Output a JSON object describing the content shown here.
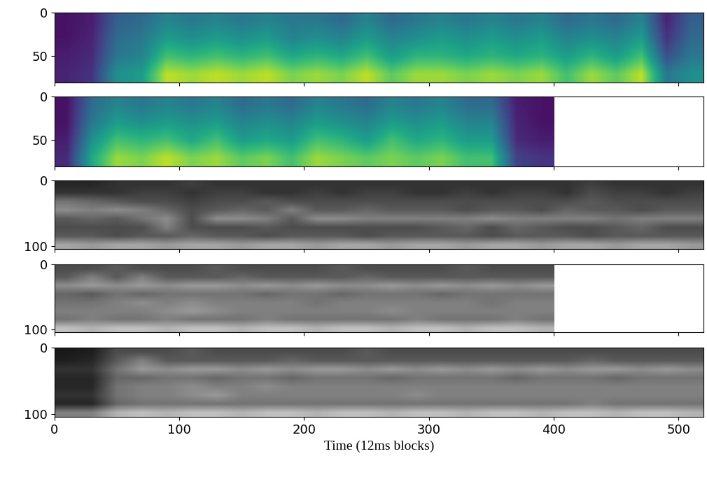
{
  "chart_data": [
    {
      "type": "heatmap",
      "color": "viridis",
      "clim": [
        0,
        1
      ],
      "xlim": [
        0,
        520
      ],
      "xticks": [
        0,
        100,
        200,
        300,
        400,
        500
      ],
      "ylim": [
        80,
        0
      ],
      "yticks": [
        0,
        50
      ],
      "tick_labels": "y",
      "x": [
        10,
        30,
        50,
        70,
        90,
        110,
        130,
        150,
        170,
        190,
        210,
        230,
        250,
        270,
        290,
        310,
        330,
        350,
        370,
        390,
        410,
        430,
        450,
        470,
        490,
        510
      ],
      "y": [
        10,
        30,
        50,
        70
      ],
      "cells": [
        [
          0.05,
          0.08,
          0.3,
          0.35,
          0.45,
          0.4,
          0.45,
          0.4,
          0.45,
          0.4,
          0.4,
          0.35,
          0.45,
          0.35,
          0.4,
          0.45,
          0.4,
          0.45,
          0.4,
          0.45,
          0.35,
          0.4,
          0.35,
          0.45,
          0.1,
          0.3
        ],
        [
          0.05,
          0.1,
          0.35,
          0.4,
          0.55,
          0.5,
          0.55,
          0.5,
          0.55,
          0.45,
          0.5,
          0.45,
          0.55,
          0.45,
          0.5,
          0.55,
          0.5,
          0.55,
          0.5,
          0.55,
          0.45,
          0.5,
          0.45,
          0.55,
          0.15,
          0.35
        ],
        [
          0.08,
          0.12,
          0.4,
          0.45,
          0.7,
          0.65,
          0.7,
          0.65,
          0.7,
          0.6,
          0.65,
          0.6,
          0.7,
          0.55,
          0.65,
          0.65,
          0.6,
          0.65,
          0.6,
          0.65,
          0.55,
          0.65,
          0.55,
          0.7,
          0.25,
          0.4
        ],
        [
          0.1,
          0.15,
          0.5,
          0.55,
          0.9,
          0.85,
          0.9,
          0.85,
          0.9,
          0.8,
          0.85,
          0.8,
          0.9,
          0.75,
          0.85,
          0.85,
          0.8,
          0.85,
          0.8,
          0.85,
          0.7,
          0.85,
          0.75,
          0.9,
          0.4,
          0.5
        ]
      ]
    },
    {
      "type": "heatmap",
      "color": "viridis",
      "clim": [
        0,
        1
      ],
      "xlim": [
        0,
        520
      ],
      "xticks": [
        0,
        100,
        200,
        300,
        400,
        500
      ],
      "ylim": [
        80,
        0
      ],
      "yticks": [
        0,
        50
      ],
      "tick_labels": "y",
      "x": [
        10,
        30,
        50,
        70,
        90,
        110,
        130,
        150,
        170,
        190,
        210,
        230,
        250,
        270,
        290,
        310,
        330,
        350,
        370,
        390
      ],
      "y": [
        10,
        30,
        50,
        70
      ],
      "cells": [
        [
          0.05,
          0.35,
          0.45,
          0.4,
          0.45,
          0.4,
          0.45,
          0.35,
          0.4,
          0.35,
          0.45,
          0.4,
          0.35,
          0.45,
          0.4,
          0.45,
          0.35,
          0.35,
          0.08,
          0.05
        ],
        [
          0.05,
          0.4,
          0.55,
          0.5,
          0.55,
          0.5,
          0.55,
          0.45,
          0.5,
          0.45,
          0.55,
          0.5,
          0.45,
          0.55,
          0.5,
          0.55,
          0.45,
          0.45,
          0.1,
          0.05
        ],
        [
          0.08,
          0.5,
          0.7,
          0.65,
          0.7,
          0.6,
          0.7,
          0.55,
          0.6,
          0.55,
          0.7,
          0.65,
          0.55,
          0.7,
          0.6,
          0.65,
          0.55,
          0.55,
          0.12,
          0.08
        ],
        [
          0.12,
          0.6,
          0.85,
          0.8,
          0.9,
          0.8,
          0.85,
          0.75,
          0.8,
          0.7,
          0.85,
          0.8,
          0.75,
          0.8,
          0.75,
          0.8,
          0.7,
          0.7,
          0.2,
          0.15
        ]
      ]
    },
    {
      "type": "heatmap",
      "color": "gray",
      "clim": [
        0,
        1
      ],
      "xlim": [
        0,
        520
      ],
      "xticks": [
        0,
        100,
        200,
        300,
        400,
        500
      ],
      "ylim": [
        104,
        0
      ],
      "yticks": [
        0,
        100
      ],
      "tick_labels": "y",
      "x": [
        10,
        30,
        50,
        70,
        90,
        110,
        130,
        150,
        170,
        190,
        210,
        230,
        250,
        270,
        290,
        310,
        330,
        350,
        370,
        390,
        410,
        430,
        450,
        470,
        490,
        510
      ],
      "y": [
        6.5,
        19.5,
        32.5,
        45.5,
        58.5,
        71.5,
        84.5,
        97.5
      ],
      "cells": [
        [
          0.15,
          0.15,
          0.2,
          0.2,
          0.2,
          0.25,
          0.2,
          0.2,
          0.2,
          0.2,
          0.2,
          0.2,
          0.2,
          0.2,
          0.2,
          0.2,
          0.2,
          0.2,
          0.2,
          0.2,
          0.2,
          0.25,
          0.2,
          0.2,
          0.2,
          0.2
        ],
        [
          0.2,
          0.2,
          0.2,
          0.25,
          0.25,
          0.2,
          0.25,
          0.25,
          0.2,
          0.2,
          0.25,
          0.2,
          0.25,
          0.25,
          0.2,
          0.2,
          0.25,
          0.2,
          0.25,
          0.25,
          0.2,
          0.3,
          0.25,
          0.25,
          0.2,
          0.25
        ],
        [
          0.45,
          0.4,
          0.35,
          0.3,
          0.3,
          0.25,
          0.3,
          0.3,
          0.35,
          0.3,
          0.3,
          0.3,
          0.3,
          0.3,
          0.3,
          0.3,
          0.3,
          0.3,
          0.3,
          0.3,
          0.3,
          0.35,
          0.3,
          0.3,
          0.3,
          0.3
        ],
        [
          0.55,
          0.5,
          0.55,
          0.5,
          0.4,
          0.3,
          0.35,
          0.4,
          0.35,
          0.5,
          0.35,
          0.35,
          0.4,
          0.35,
          0.35,
          0.35,
          0.3,
          0.35,
          0.35,
          0.3,
          0.4,
          0.35,
          0.35,
          0.3,
          0.35,
          0.35
        ],
        [
          0.35,
          0.4,
          0.35,
          0.45,
          0.55,
          0.3,
          0.55,
          0.55,
          0.5,
          0.35,
          0.55,
          0.55,
          0.5,
          0.5,
          0.5,
          0.5,
          0.5,
          0.55,
          0.5,
          0.5,
          0.5,
          0.5,
          0.45,
          0.5,
          0.5,
          0.5
        ],
        [
          0.3,
          0.3,
          0.3,
          0.3,
          0.5,
          0.3,
          0.3,
          0.3,
          0.35,
          0.3,
          0.3,
          0.3,
          0.3,
          0.3,
          0.3,
          0.35,
          0.4,
          0.3,
          0.4,
          0.35,
          0.3,
          0.3,
          0.35,
          0.4,
          0.3,
          0.3
        ],
        [
          0.35,
          0.35,
          0.3,
          0.35,
          0.35,
          0.4,
          0.35,
          0.35,
          0.3,
          0.35,
          0.35,
          0.35,
          0.3,
          0.35,
          0.35,
          0.35,
          0.35,
          0.3,
          0.35,
          0.35,
          0.35,
          0.3,
          0.35,
          0.35,
          0.35,
          0.35
        ],
        [
          0.65,
          0.6,
          0.65,
          0.65,
          0.6,
          0.65,
          0.65,
          0.6,
          0.65,
          0.65,
          0.6,
          0.65,
          0.65,
          0.6,
          0.65,
          0.65,
          0.6,
          0.65,
          0.65,
          0.6,
          0.65,
          0.65,
          0.6,
          0.65,
          0.65,
          0.6
        ]
      ]
    },
    {
      "type": "heatmap",
      "color": "gray",
      "clim": [
        0,
        1
      ],
      "xlim": [
        0,
        520
      ],
      "xticks": [
        0,
        100,
        200,
        300,
        400,
        500
      ],
      "ylim": [
        104,
        0
      ],
      "yticks": [
        0,
        100
      ],
      "tick_labels": "y",
      "x": [
        10,
        30,
        50,
        70,
        90,
        110,
        130,
        150,
        170,
        190,
        210,
        230,
        250,
        270,
        290,
        310,
        330,
        350,
        370,
        390
      ],
      "y": [
        6.5,
        19.5,
        32.5,
        45.5,
        58.5,
        71.5,
        84.5,
        97.5
      ],
      "cells": [
        [
          0.3,
          0.3,
          0.35,
          0.3,
          0.3,
          0.3,
          0.35,
          0.3,
          0.3,
          0.3,
          0.3,
          0.35,
          0.3,
          0.3,
          0.3,
          0.3,
          0.35,
          0.3,
          0.3,
          0.3
        ],
        [
          0.35,
          0.5,
          0.35,
          0.5,
          0.35,
          0.35,
          0.35,
          0.4,
          0.35,
          0.35,
          0.35,
          0.35,
          0.4,
          0.35,
          0.35,
          0.35,
          0.35,
          0.35,
          0.35,
          0.35
        ],
        [
          0.55,
          0.6,
          0.55,
          0.6,
          0.55,
          0.6,
          0.6,
          0.55,
          0.6,
          0.55,
          0.6,
          0.55,
          0.55,
          0.6,
          0.55,
          0.6,
          0.55,
          0.6,
          0.55,
          0.6
        ],
        [
          0.4,
          0.35,
          0.45,
          0.4,
          0.45,
          0.45,
          0.45,
          0.45,
          0.4,
          0.45,
          0.45,
          0.4,
          0.45,
          0.45,
          0.45,
          0.4,
          0.45,
          0.45,
          0.45,
          0.45
        ],
        [
          0.45,
          0.45,
          0.5,
          0.55,
          0.5,
          0.55,
          0.5,
          0.5,
          0.5,
          0.5,
          0.45,
          0.5,
          0.5,
          0.5,
          0.5,
          0.5,
          0.5,
          0.45,
          0.5,
          0.5
        ],
        [
          0.5,
          0.5,
          0.5,
          0.5,
          0.55,
          0.6,
          0.55,
          0.5,
          0.5,
          0.5,
          0.5,
          0.5,
          0.5,
          0.55,
          0.5,
          0.5,
          0.5,
          0.5,
          0.5,
          0.5
        ],
        [
          0.45,
          0.5,
          0.45,
          0.45,
          0.5,
          0.45,
          0.45,
          0.45,
          0.5,
          0.45,
          0.45,
          0.45,
          0.45,
          0.45,
          0.5,
          0.45,
          0.45,
          0.45,
          0.5,
          0.45
        ],
        [
          0.75,
          0.7,
          0.75,
          0.75,
          0.7,
          0.75,
          0.75,
          0.7,
          0.75,
          0.75,
          0.7,
          0.75,
          0.75,
          0.7,
          0.75,
          0.75,
          0.7,
          0.75,
          0.75,
          0.7
        ]
      ]
    },
    {
      "type": "heatmap",
      "color": "gray",
      "clim": [
        0,
        1
      ],
      "xlim": [
        0,
        520
      ],
      "xticks": [
        0,
        100,
        200,
        300,
        400,
        500
      ],
      "ylim": [
        104,
        0
      ],
      "yticks": [
        0,
        100
      ],
      "x_label": "Time (12ms blocks)",
      "x": [
        10,
        30,
        50,
        70,
        90,
        110,
        130,
        150,
        170,
        190,
        210,
        230,
        250,
        270,
        290,
        310,
        330,
        350,
        370,
        390,
        410,
        430,
        450,
        470,
        490,
        510
      ],
      "y": [
        6.5,
        19.5,
        32.5,
        45.5,
        58.5,
        71.5,
        84.5,
        97.5
      ],
      "cells": [
        [
          0.1,
          0.12,
          0.3,
          0.3,
          0.3,
          0.35,
          0.3,
          0.3,
          0.3,
          0.3,
          0.3,
          0.3,
          0.35,
          0.3,
          0.3,
          0.3,
          0.3,
          0.3,
          0.3,
          0.3,
          0.3,
          0.3,
          0.3,
          0.3,
          0.3,
          0.3
        ],
        [
          0.12,
          0.15,
          0.35,
          0.5,
          0.35,
          0.35,
          0.35,
          0.35,
          0.35,
          0.4,
          0.35,
          0.35,
          0.35,
          0.35,
          0.35,
          0.35,
          0.35,
          0.35,
          0.35,
          0.35,
          0.35,
          0.4,
          0.35,
          0.35,
          0.35,
          0.35
        ],
        [
          0.2,
          0.2,
          0.45,
          0.6,
          0.55,
          0.6,
          0.6,
          0.55,
          0.6,
          0.55,
          0.6,
          0.6,
          0.55,
          0.6,
          0.55,
          0.6,
          0.55,
          0.6,
          0.55,
          0.6,
          0.55,
          0.6,
          0.6,
          0.55,
          0.6,
          0.55
        ],
        [
          0.15,
          0.15,
          0.4,
          0.4,
          0.45,
          0.45,
          0.4,
          0.45,
          0.45,
          0.4,
          0.45,
          0.45,
          0.45,
          0.4,
          0.45,
          0.45,
          0.45,
          0.45,
          0.4,
          0.45,
          0.45,
          0.45,
          0.4,
          0.45,
          0.45,
          0.45
        ],
        [
          0.15,
          0.15,
          0.45,
          0.5,
          0.5,
          0.55,
          0.5,
          0.5,
          0.55,
          0.5,
          0.5,
          0.5,
          0.5,
          0.5,
          0.5,
          0.5,
          0.5,
          0.5,
          0.5,
          0.5,
          0.5,
          0.5,
          0.5,
          0.5,
          0.5,
          0.5
        ],
        [
          0.2,
          0.2,
          0.45,
          0.5,
          0.5,
          0.55,
          0.6,
          0.5,
          0.5,
          0.5,
          0.5,
          0.5,
          0.5,
          0.5,
          0.55,
          0.5,
          0.5,
          0.5,
          0.5,
          0.5,
          0.5,
          0.5,
          0.5,
          0.5,
          0.5,
          0.5
        ],
        [
          0.15,
          0.15,
          0.4,
          0.45,
          0.45,
          0.45,
          0.45,
          0.45,
          0.45,
          0.45,
          0.45,
          0.45,
          0.45,
          0.45,
          0.45,
          0.45,
          0.45,
          0.45,
          0.45,
          0.45,
          0.45,
          0.5,
          0.45,
          0.45,
          0.45,
          0.45
        ],
        [
          0.5,
          0.5,
          0.7,
          0.75,
          0.7,
          0.75,
          0.75,
          0.7,
          0.75,
          0.75,
          0.7,
          0.75,
          0.75,
          0.7,
          0.75,
          0.75,
          0.7,
          0.75,
          0.75,
          0.7,
          0.75,
          0.75,
          0.7,
          0.75,
          0.75,
          0.7
        ]
      ]
    }
  ]
}
